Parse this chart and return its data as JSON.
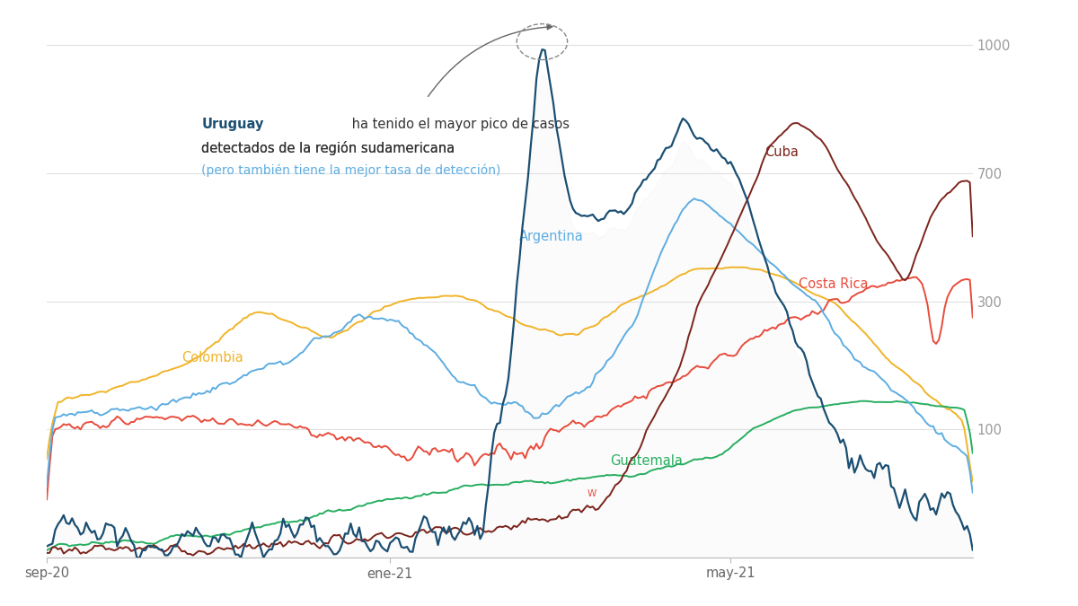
{
  "background_color": "#ffffff",
  "grid_color": "#e0e0e0",
  "yticks": [
    100,
    300,
    700,
    1000
  ],
  "xtick_labels": [
    "sep-20",
    "ene-21",
    "may-21"
  ],
  "colors": {
    "Uruguay": "#1b4f72",
    "Argentina": "#5dade2",
    "Colombia": "#f0b429",
    "Cuba": "#7b241c",
    "Costa Rica": "#e74c3c",
    "Guatemala": "#27ae60"
  }
}
